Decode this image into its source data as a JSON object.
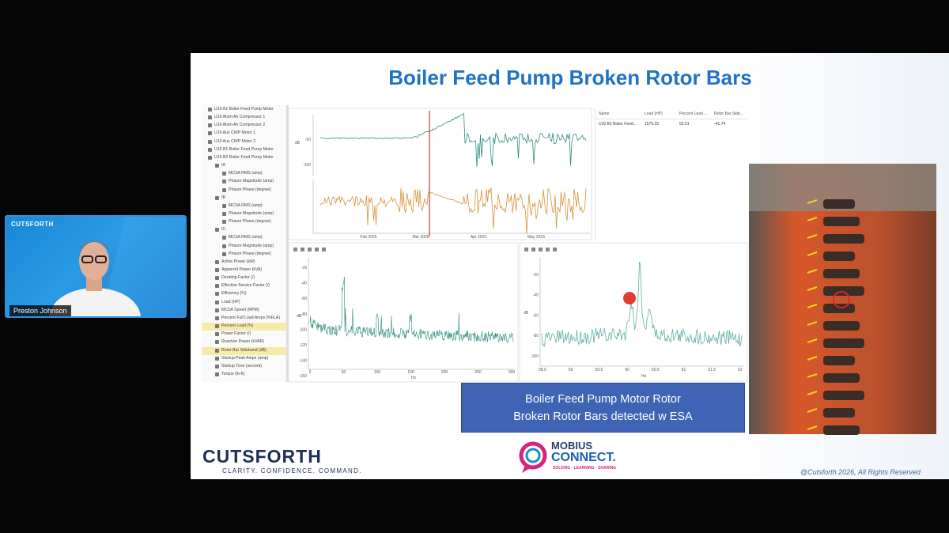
{
  "webcam": {
    "brand": "CUTSFORTH",
    "speaker": "Preston Johnson"
  },
  "slide": {
    "title": "Boiler Feed Pump Broken Rotor Bars",
    "tree": [
      "U10 A2 Boiler Feed Pump Motor",
      "U10 Atom Air Compressor 1",
      "U10 Atom Air Compressor 2",
      "U10 Aux CWP Motor 1",
      "U10 Aux CWP Motor 2",
      "U10 B1 Boiler Feed Pump Motor",
      "U10 B2 Boiler Feed Pump Motor",
      "IA",
      "MCSA RMS (amp)",
      "Phasor Magnitude (amp)",
      "Phasor Phase (degree)",
      "IB",
      "MCSA RMS (amp)",
      "Phasor Magnitude (amp)",
      "Phasor Phase (degree)",
      "IC",
      "MCSA RMS (amp)",
      "Phasor Magnitude (amp)",
      "Phasor Phase (degree)",
      "Active Power (kW)",
      "Apparent Power (kVA)",
      "Derating Factor (/)",
      "Effective Service Factor (/)",
      "Efficiency (%)",
      "Load (HP)",
      "MCSA Speed (RPM)",
      "Percent Full Load Amps (%FLA)",
      "Percent Load (%)",
      "Power Factor (/)",
      "Reactive Power (kVAR)",
      "Rotor Bar Sideband (dB)",
      "Startup Peak Amps (amp)",
      "Startup Time (second)",
      "Torque (lb-ft)"
    ],
    "trend_chart": {
      "y_label": "dB",
      "y_ticks": [
        -50,
        -100
      ],
      "x_ticks": [
        "Feb 2025",
        "Mar 2025",
        "Apr 2025",
        "May 2025"
      ]
    },
    "table": {
      "columns": [
        "Name",
        "Load (HP)",
        "Percent Load ...",
        "Rotor Bar Side..."
      ],
      "rows": [
        [
          "U10 B2 Boiler Feed...",
          1575.33,
          52.51,
          -41.74
        ]
      ]
    },
    "spectrum_left": {
      "y_label": "dB",
      "x_label": "Hz",
      "y_ticks": [
        -20,
        -40,
        -60,
        -80,
        -100,
        -120,
        -140,
        -160
      ],
      "x_ticks": [
        0,
        50,
        100,
        150,
        200,
        250,
        300
      ]
    },
    "spectrum_right": {
      "y_label": "dB",
      "x_label": "Hz",
      "y_ticks": [
        -20,
        -40,
        -60,
        -80,
        -100
      ],
      "x_ticks": [
        58.5,
        59,
        59.5,
        60,
        60.5,
        61,
        61.5,
        62
      ]
    },
    "callout": [
      "Boiler Feed Pump Motor Rotor",
      "Broken Rotor Bars detected w ESA"
    ],
    "logo": {
      "name": "CUTSFORTH",
      "tagline": "CLARITY. CONFIDENCE. COMMAND."
    },
    "mobius": {
      "line1": "MOBIUS",
      "line2": "CONNECT.",
      "tagline": "SOLVING · LEARNING · SHARING"
    },
    "copyright": "@Cutsforth 2026, All Rights Reserved"
  }
}
